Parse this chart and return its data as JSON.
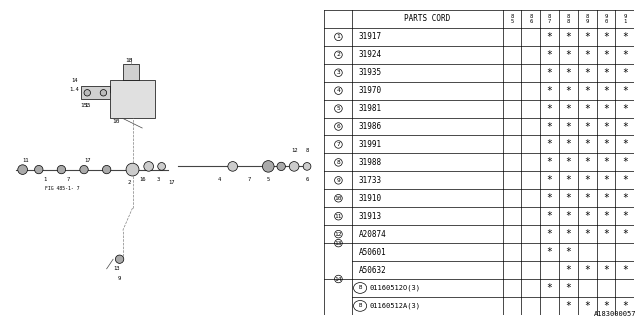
{
  "title": "A183000057",
  "parts_cord_header": "PARTS CORD",
  "col_headers": [
    "85",
    "86",
    "87",
    "88",
    "89",
    "90",
    "91"
  ],
  "display_rows": [
    {
      "num": "1",
      "circle": true,
      "num_span": 1,
      "code": "31917",
      "b_circle": false,
      "marks": [
        false,
        false,
        true,
        true,
        true,
        true,
        true
      ]
    },
    {
      "num": "2",
      "circle": true,
      "num_span": 1,
      "code": "31924",
      "b_circle": false,
      "marks": [
        false,
        false,
        true,
        true,
        true,
        true,
        true
      ]
    },
    {
      "num": "3",
      "circle": true,
      "num_span": 1,
      "code": "31935",
      "b_circle": false,
      "marks": [
        false,
        false,
        true,
        true,
        true,
        true,
        true
      ]
    },
    {
      "num": "4",
      "circle": true,
      "num_span": 1,
      "code": "31970",
      "b_circle": false,
      "marks": [
        false,
        false,
        true,
        true,
        true,
        true,
        true
      ]
    },
    {
      "num": "5",
      "circle": true,
      "num_span": 1,
      "code": "31981",
      "b_circle": false,
      "marks": [
        false,
        false,
        true,
        true,
        true,
        true,
        true
      ]
    },
    {
      "num": "6",
      "circle": true,
      "num_span": 1,
      "code": "31986",
      "b_circle": false,
      "marks": [
        false,
        false,
        true,
        true,
        true,
        true,
        true
      ]
    },
    {
      "num": "7",
      "circle": true,
      "num_span": 1,
      "code": "31991",
      "b_circle": false,
      "marks": [
        false,
        false,
        true,
        true,
        true,
        true,
        true
      ]
    },
    {
      "num": "8",
      "circle": true,
      "num_span": 1,
      "code": "31988",
      "b_circle": false,
      "marks": [
        false,
        false,
        true,
        true,
        true,
        true,
        true
      ]
    },
    {
      "num": "9",
      "circle": true,
      "num_span": 1,
      "code": "31733",
      "b_circle": false,
      "marks": [
        false,
        false,
        true,
        true,
        true,
        true,
        true
      ]
    },
    {
      "num": "10",
      "circle": true,
      "num_span": 1,
      "code": "31910",
      "b_circle": false,
      "marks": [
        false,
        false,
        true,
        true,
        true,
        true,
        true
      ]
    },
    {
      "num": "11",
      "circle": true,
      "num_span": 1,
      "code": "31913",
      "b_circle": false,
      "marks": [
        false,
        false,
        true,
        true,
        true,
        true,
        true
      ]
    },
    {
      "num": "12",
      "circle": true,
      "num_span": 1,
      "code": "A20874",
      "b_circle": false,
      "marks": [
        false,
        false,
        true,
        true,
        true,
        true,
        true
      ]
    },
    {
      "num": "13",
      "circle": true,
      "num_span": 2,
      "code": "A50601",
      "b_circle": false,
      "marks": [
        false,
        false,
        true,
        true,
        false,
        false,
        false
      ]
    },
    {
      "num": "",
      "circle": false,
      "num_span": 0,
      "code": "A50632",
      "b_circle": false,
      "marks": [
        false,
        false,
        false,
        true,
        true,
        true,
        true
      ]
    },
    {
      "num": "14",
      "circle": true,
      "num_span": 2,
      "code": "01160512O(3)",
      "b_circle": true,
      "marks": [
        false,
        false,
        true,
        true,
        false,
        false,
        false
      ]
    },
    {
      "num": "",
      "circle": false,
      "num_span": 0,
      "code": "01160512A(3)",
      "b_circle": true,
      "marks": [
        false,
        false,
        false,
        true,
        true,
        true,
        true
      ]
    }
  ],
  "bg_color": "#ffffff",
  "left_diagram_elements": {
    "fig_label": "FIG 485-1- 7",
    "part_numbers_on_diagram": [
      "1",
      "2",
      "3",
      "4",
      "5",
      "6",
      "7",
      "8",
      "9",
      "10",
      "11",
      "12",
      "13",
      "14",
      "15",
      "16",
      "17",
      "18"
    ]
  }
}
